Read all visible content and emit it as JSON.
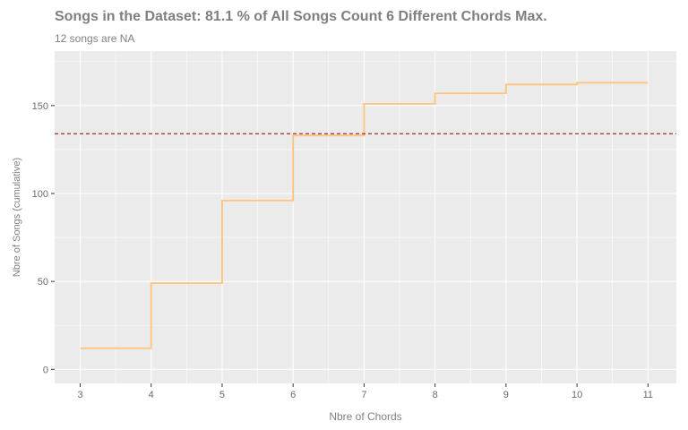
{
  "chart_data": {
    "type": "line",
    "step": true,
    "title": "Songs in the Dataset:  81.1 % of All Songs Count 6 Different Chords Max.",
    "subtitle": "12 songs are NA",
    "xlabel": "Nbre of Chords",
    "ylabel": "Nbre of Songs (cumulative)",
    "x": [
      3,
      4,
      5,
      6,
      7,
      8,
      9,
      10,
      11
    ],
    "y": [
      12,
      49,
      96,
      133,
      151,
      157,
      162,
      163,
      163
    ],
    "xlim": [
      2.64,
      11.4
    ],
    "ylim": [
      -8,
      181
    ],
    "xticks": [
      3,
      4,
      5,
      6,
      7,
      8,
      9,
      10,
      11
    ],
    "yticks": [
      0,
      50,
      100,
      150
    ],
    "hline": 134,
    "grid": true,
    "colors": {
      "panel": "#ebebeb",
      "grid": "#ffffff",
      "step_line": "#ffc47a",
      "hline": "#8b0000",
      "text": "#7f7f7f",
      "tick_label": "#6b6b6b"
    }
  }
}
